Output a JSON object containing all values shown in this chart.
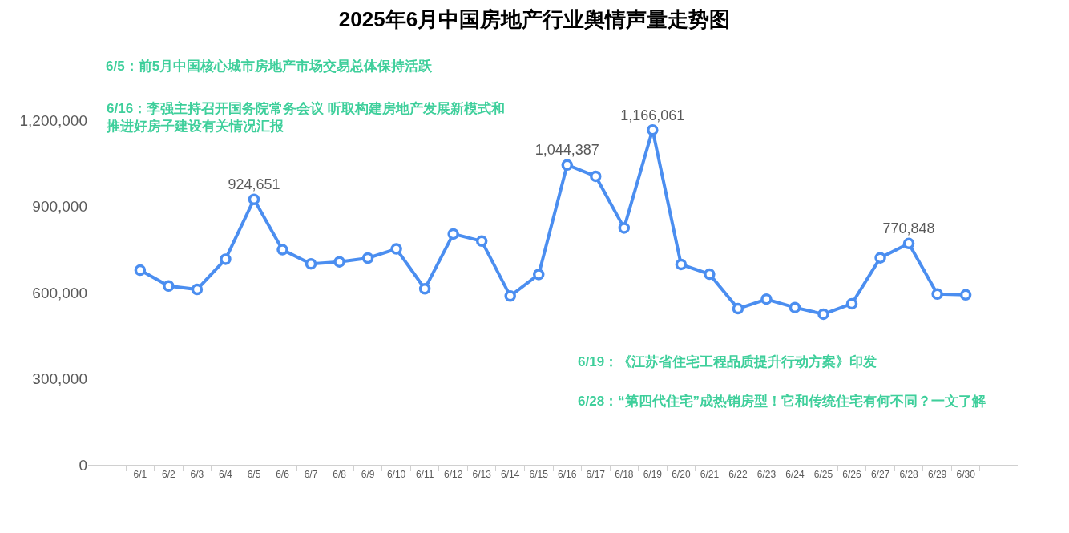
{
  "chart_data": {
    "type": "line",
    "title": "2025年6月中国房地产行业舆情声量走势图",
    "categories": [
      "6/1",
      "6/2",
      "6/3",
      "6/4",
      "6/5",
      "6/6",
      "6/7",
      "6/8",
      "6/9",
      "6/10",
      "6/11",
      "6/12",
      "6/13",
      "6/14",
      "6/15",
      "6/16",
      "6/17",
      "6/18",
      "6/19",
      "6/20",
      "6/21",
      "6/22",
      "6/23",
      "6/24",
      "6/25",
      "6/26",
      "6/27",
      "6/28",
      "6/29",
      "6/30"
    ],
    "values": [
      678000,
      623000,
      611000,
      716000,
      924651,
      749000,
      700000,
      707000,
      720000,
      752000,
      613000,
      804000,
      779000,
      588000,
      663000,
      1044387,
      1005000,
      825000,
      1166061,
      698000,
      664000,
      544000,
      577000,
      548000,
      525000,
      561000,
      721000,
      770848,
      595000,
      592000
    ],
    "value_labels": [
      null,
      null,
      null,
      null,
      "924,651",
      null,
      null,
      null,
      null,
      null,
      null,
      null,
      null,
      null,
      null,
      "1,044,387",
      null,
      null,
      "1,166,061",
      null,
      null,
      null,
      null,
      null,
      null,
      null,
      null,
      "770,848",
      null,
      null
    ],
    "color": "#4b8ef0",
    "marker": "circle",
    "line_style": "solid",
    "ylim": [
      0,
      1200000
    ],
    "yticks": [
      0,
      {
        "value": 300000,
        "label": "300,000"
      },
      {
        "value": 600000,
        "label": "600,000"
      },
      {
        "value": 900000,
        "label": "900,000"
      },
      {
        "value": 1200000,
        "label": "1,200,000"
      }
    ],
    "annotations": [
      "6/5：前5月中国核心城市房地产市场交易总体保持活跃",
      "6/16：李强主持召开国务院常务会议 听取构建房地产发展新模式和推进好房子建设有关情况汇报",
      "6/19：《江苏省住宅工程品质提升行动方案》印发",
      "6/28：“第四代住宅”成热销房型！它和传统住宅有何不同？一文了解"
    ]
  }
}
